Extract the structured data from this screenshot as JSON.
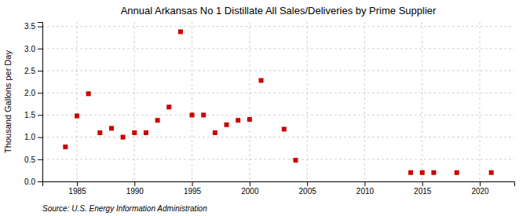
{
  "chart_data": {
    "type": "scatter",
    "title": "Annual Arkansas No 1 Distillate All Sales/Deliveries by Prime Supplier",
    "ylabel": "Thousand Gallons per Day",
    "source": "Source: U.S. Energy Information Administration",
    "x": [
      1984,
      1985,
      1986,
      1987,
      1988,
      1989,
      1990,
      1991,
      1992,
      1993,
      1994,
      1995,
      1996,
      1997,
      1998,
      1999,
      2000,
      2001,
      2003,
      2004,
      2014,
      2015,
      2016,
      2018,
      2021
    ],
    "values": [
      0.78,
      1.48,
      1.98,
      1.1,
      1.2,
      1.0,
      1.1,
      1.1,
      1.38,
      1.68,
      3.38,
      1.5,
      1.5,
      1.1,
      1.28,
      1.38,
      1.4,
      2.28,
      1.18,
      0.48,
      0.2,
      0.2,
      0.2,
      0.2,
      0.2
    ],
    "color": "#cc0000",
    "marker": "square",
    "xlim": [
      1982,
      2023
    ],
    "ylim": [
      0.0,
      3.6
    ],
    "xticks": [
      1985,
      1990,
      1995,
      2000,
      2005,
      2010,
      2015,
      2020
    ],
    "yticks": [
      {
        "value": 0.0,
        "label": "0.0"
      },
      0.5,
      {
        "value": 1.0,
        "label": "1.0"
      },
      1.5,
      {
        "value": 2.0,
        "label": "2.0"
      },
      2.5,
      {
        "value": 3.0,
        "label": "3.0"
      },
      3.5
    ],
    "grid": true
  }
}
